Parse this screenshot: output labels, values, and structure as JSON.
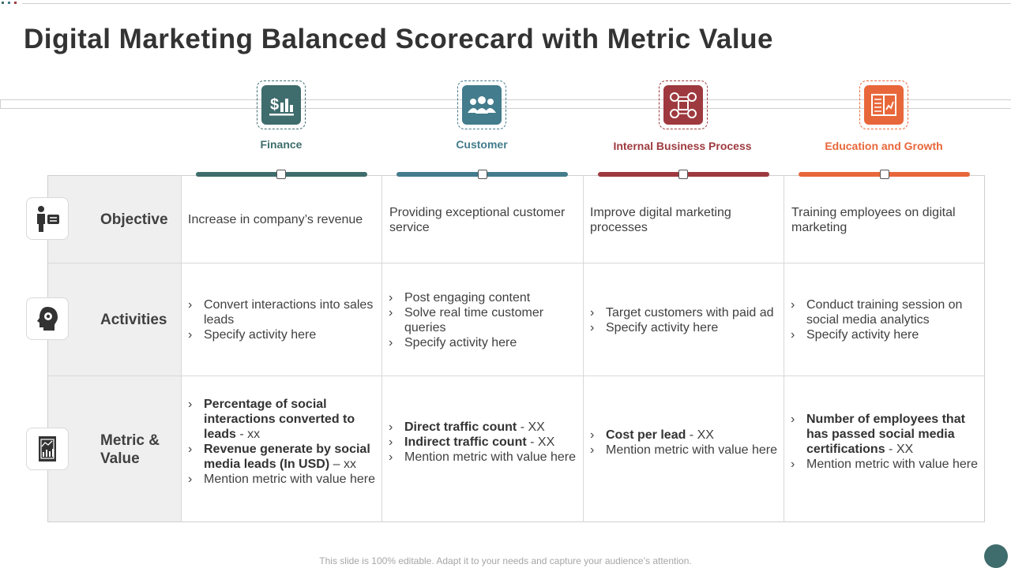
{
  "title": "Digital Marketing Balanced Scorecard with Metric Value",
  "footer": "This slide is 100% editable. Adapt it to your needs and capture your audience’s attention.",
  "colors": {
    "finance": "#3f6c6c",
    "customer": "#437c8c",
    "process": "#9e3a3f",
    "education": "#e8673a"
  },
  "columns": [
    {
      "label": "Finance",
      "icon": "finance-chart-icon"
    },
    {
      "label": "Customer",
      "icon": "customer-group-icon"
    },
    {
      "label": "Internal Business Process",
      "icon": "process-flow-icon"
    },
    {
      "label": "Education and Growth",
      "icon": "education-book-icon"
    }
  ],
  "rows": [
    {
      "label": "Objective",
      "icon": "presenter-icon"
    },
    {
      "label": "Activities",
      "icon": "head-gear-icon"
    },
    {
      "label": "Metric & Value",
      "icon": "chart-document-icon"
    }
  ],
  "objectives": [
    "Increase in company’s revenue",
    "Providing exceptional customer service",
    "Improve digital marketing processes",
    "Training employees on digital marketing"
  ],
  "activities": [
    [
      "Convert interactions into sales leads",
      "Specify activity here"
    ],
    [
      "Post engaging content",
      "Solve real time customer queries",
      "Specify activity here"
    ],
    [
      "Target customers with paid ad",
      "Specify activity here"
    ],
    [
      "Conduct training session on social media analytics",
      "Specify activity here"
    ]
  ],
  "metrics": [
    [
      {
        "bold": "Percentage of social interactions converted to leads",
        "rest": " - xx"
      },
      {
        "bold": "Revenue generate by social media leads (In USD)",
        "rest": " – xx"
      },
      {
        "bold": "",
        "rest": "Mention metric with value here"
      }
    ],
    [
      {
        "bold": "Direct traffic count",
        "rest": " - XX"
      },
      {
        "bold": "Indirect traffic count",
        "rest": " - XX"
      },
      {
        "bold": "",
        "rest": "Mention metric with value here"
      }
    ],
    [
      {
        "bold": "Cost per lead",
        "rest": " - XX"
      },
      {
        "bold": "",
        "rest": "Mention metric with value here"
      }
    ],
    [
      {
        "bold": "Number of employees that has passed social media certifications",
        "rest": " - XX"
      },
      {
        "bold": "",
        "rest": "Mention metric with value here"
      }
    ]
  ]
}
